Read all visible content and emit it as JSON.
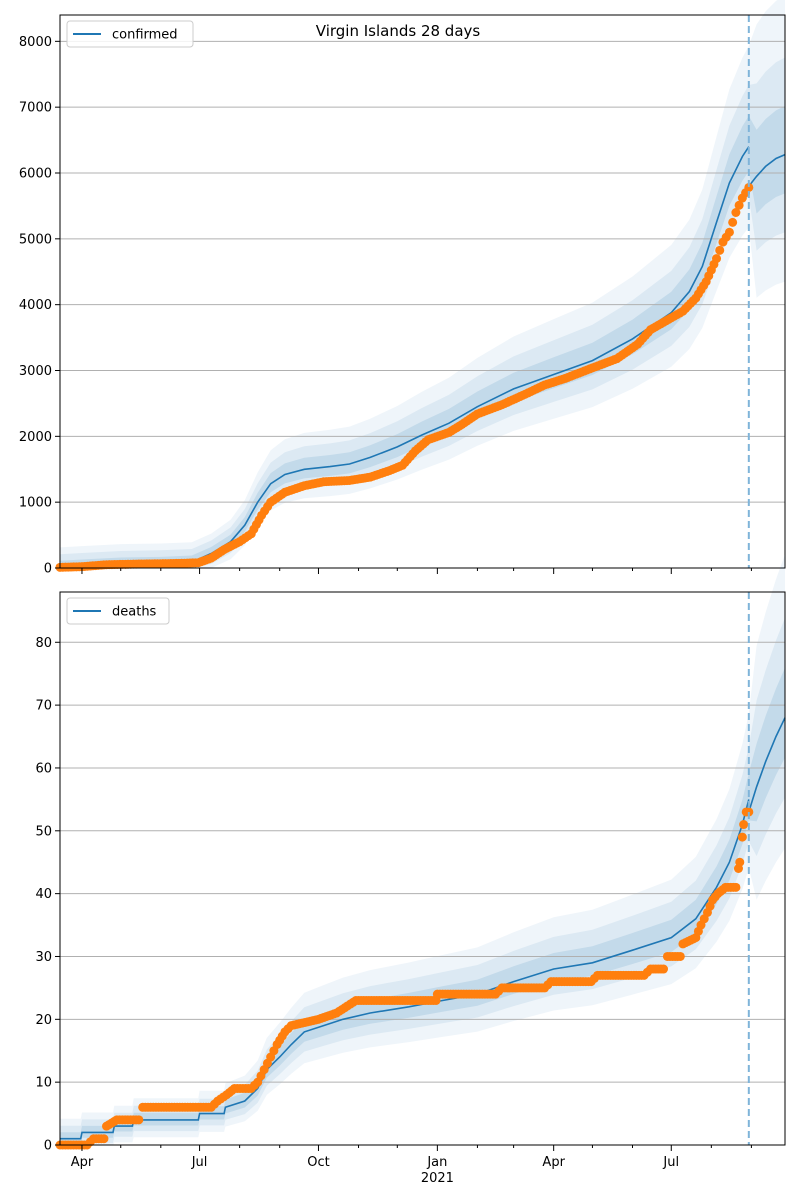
{
  "figure": {
    "title": "Virgin Islands 28 days",
    "xlabel_year": "2021"
  },
  "chart_data": [
    {
      "type": "line",
      "title": "Virgin Islands 28 days",
      "legend": [
        "confirmed"
      ],
      "legend_position": "top-left",
      "ylim": [
        0,
        8400
      ],
      "yticks": [
        0,
        1000,
        2000,
        3000,
        4000,
        5000,
        6000,
        7000,
        8000
      ],
      "xticks": [
        "Apr",
        "Jul",
        "Oct",
        "Jan",
        "Apr",
        "Jul"
      ],
      "xlabel": "2021",
      "grid": "horizontal",
      "x_start": "2020-03-15",
      "x_end": "2021-09-27",
      "forecast_start": "2021-08-30",
      "series": [
        {
          "name": "confirmed",
          "role": "model",
          "color": "#1f77b4",
          "points": [
            [
              "2020-03-15",
              10
            ],
            [
              "2020-04-01",
              30
            ],
            [
              "2020-05-01",
              60
            ],
            [
              "2020-06-01",
              70
            ],
            [
              "2020-06-25",
              90
            ],
            [
              "2020-07-10",
              220
            ],
            [
              "2020-07-25",
              400
            ],
            [
              "2020-08-05",
              650
            ],
            [
              "2020-08-15",
              1000
            ],
            [
              "2020-08-25",
              1280
            ],
            [
              "2020-09-05",
              1420
            ],
            [
              "2020-09-20",
              1500
            ],
            [
              "2020-10-10",
              1540
            ],
            [
              "2020-10-25",
              1580
            ],
            [
              "2020-11-10",
              1680
            ],
            [
              "2020-12-01",
              1840
            ],
            [
              "2020-12-20",
              2020
            ],
            [
              "2021-01-10",
              2200
            ],
            [
              "2021-02-01",
              2450
            ],
            [
              "2021-03-01",
              2720
            ],
            [
              "2021-04-01",
              2940
            ],
            [
              "2021-05-01",
              3150
            ],
            [
              "2021-06-01",
              3480
            ],
            [
              "2021-07-01",
              3880
            ],
            [
              "2021-07-15",
              4200
            ],
            [
              "2021-07-25",
              4580
            ],
            [
              "2021-08-05",
              5250
            ],
            [
              "2021-08-15",
              5850
            ],
            [
              "2021-08-25",
              6250
            ],
            [
              "2021-08-30",
              6400
            ]
          ]
        },
        {
          "name": "forecast",
          "role": "forecast",
          "color": "#1f77b4",
          "points": [
            [
              "2021-08-30",
              5800
            ],
            [
              "2021-09-05",
              5950
            ],
            [
              "2021-09-12",
              6100
            ],
            [
              "2021-09-20",
              6220
            ],
            [
              "2021-09-27",
              6280
            ]
          ]
        },
        {
          "name": "observed",
          "role": "observed",
          "color": "#ff7f0e",
          "points": [
            [
              "2020-03-15",
              10
            ],
            [
              "2020-04-01",
              20
            ],
            [
              "2020-04-20",
              50
            ],
            [
              "2020-05-15",
              60
            ],
            [
              "2020-06-15",
              70
            ],
            [
              "2020-06-30",
              80
            ],
            [
              "2020-07-10",
              150
            ],
            [
              "2020-07-20",
              280
            ],
            [
              "2020-08-01",
              400
            ],
            [
              "2020-08-10",
              520
            ],
            [
              "2020-08-18",
              800
            ],
            [
              "2020-08-25",
              1000
            ],
            [
              "2020-09-05",
              1150
            ],
            [
              "2020-09-20",
              1250
            ],
            [
              "2020-10-05",
              1310
            ],
            [
              "2020-10-25",
              1330
            ],
            [
              "2020-11-10",
              1380
            ],
            [
              "2020-11-25",
              1480
            ],
            [
              "2020-12-05",
              1560
            ],
            [
              "2020-12-15",
              1780
            ],
            [
              "2020-12-25",
              1950
            ],
            [
              "2021-01-10",
              2060
            ],
            [
              "2021-01-20",
              2180
            ],
            [
              "2021-02-01",
              2340
            ],
            [
              "2021-02-20",
              2480
            ],
            [
              "2021-03-10",
              2640
            ],
            [
              "2021-03-25",
              2780
            ],
            [
              "2021-04-10",
              2880
            ],
            [
              "2021-05-01",
              3040
            ],
            [
              "2021-05-20",
              3180
            ],
            [
              "2021-06-05",
              3400
            ],
            [
              "2021-06-15",
              3620
            ],
            [
              "2021-07-01",
              3800
            ],
            [
              "2021-07-10",
              3900
            ],
            [
              "2021-07-20",
              4100
            ],
            [
              "2021-07-28",
              4350
            ],
            [
              "2021-08-05",
              4700
            ],
            [
              "2021-08-10",
              4950
            ],
            [
              "2021-08-15",
              5100
            ],
            [
              "2021-08-20",
              5400
            ],
            [
              "2021-08-25",
              5620
            ],
            [
              "2021-08-30",
              5780
            ]
          ]
        }
      ]
    },
    {
      "type": "line",
      "legend": [
        "deaths"
      ],
      "legend_position": "top-left",
      "ylim": [
        0,
        88
      ],
      "yticks": [
        0,
        10,
        20,
        30,
        40,
        50,
        60,
        70,
        80
      ],
      "xticks": [
        "Apr",
        "Jul",
        "Oct",
        "Jan",
        "Apr",
        "Jul"
      ],
      "xlabel": "2021",
      "grid": "horizontal",
      "x_start": "2020-03-15",
      "x_end": "2021-09-27",
      "forecast_start": "2021-08-30",
      "series": [
        {
          "name": "deaths",
          "role": "model",
          "color": "#1f77b4",
          "points": [
            [
              "2020-03-15",
              1
            ],
            [
              "2020-03-31",
              1
            ],
            [
              "2020-04-01",
              2
            ],
            [
              "2020-04-25",
              2
            ],
            [
              "2020-04-26",
              3
            ],
            [
              "2020-05-10",
              3
            ],
            [
              "2020-05-11",
              4
            ],
            [
              "2020-06-30",
              4
            ],
            [
              "2020-07-01",
              5
            ],
            [
              "2020-07-20",
              5
            ],
            [
              "2020-07-21",
              6
            ],
            [
              "2020-08-05",
              7
            ],
            [
              "2020-08-15",
              9
            ],
            [
              "2020-08-22",
              12
            ],
            [
              "2020-09-01",
              14
            ],
            [
              "2020-09-10",
              16
            ],
            [
              "2020-09-20",
              18
            ],
            [
              "2020-10-05",
              19
            ],
            [
              "2020-10-20",
              20
            ],
            [
              "2020-11-10",
              21
            ],
            [
              "2020-12-10",
              22
            ],
            [
              "2021-01-05",
              23
            ],
            [
              "2021-02-01",
              24
            ],
            [
              "2021-03-01",
              26
            ],
            [
              "2021-04-01",
              28
            ],
            [
              "2021-05-01",
              29
            ],
            [
              "2021-06-01",
              31
            ],
            [
              "2021-07-01",
              33
            ],
            [
              "2021-07-20",
              36
            ],
            [
              "2021-08-05",
              41
            ],
            [
              "2021-08-15",
              45
            ],
            [
              "2021-08-25",
              51
            ],
            [
              "2021-08-30",
              55
            ]
          ]
        },
        {
          "name": "forecast",
          "role": "forecast",
          "color": "#1f77b4",
          "points": [
            [
              "2021-08-30",
              53
            ],
            [
              "2021-09-05",
              57
            ],
            [
              "2021-09-12",
              61
            ],
            [
              "2021-09-20",
              65
            ],
            [
              "2021-09-27",
              68
            ]
          ]
        },
        {
          "name": "observed",
          "role": "observed",
          "color": "#ff7f0e",
          "points": [
            [
              "2020-03-15",
              0
            ],
            [
              "2020-04-05",
              0
            ],
            [
              "2020-04-10",
              1
            ],
            [
              "2020-04-18",
              1
            ],
            [
              "2020-04-20",
              3
            ],
            [
              "2020-04-28",
              4
            ],
            [
              "2020-05-15",
              4
            ],
            [
              "2020-05-18",
              6
            ],
            [
              "2020-06-30",
              6
            ],
            [
              "2020-07-10",
              6
            ],
            [
              "2020-07-15",
              7
            ],
            [
              "2020-07-22",
              8
            ],
            [
              "2020-07-28",
              9
            ],
            [
              "2020-08-10",
              9
            ],
            [
              "2020-08-15",
              10
            ],
            [
              "2020-08-20",
              12
            ],
            [
              "2020-08-25",
              14
            ],
            [
              "2020-08-30",
              16
            ],
            [
              "2020-09-05",
              18
            ],
            [
              "2020-09-10",
              19
            ],
            [
              "2020-10-01",
              20
            ],
            [
              "2020-10-15",
              21
            ],
            [
              "2020-10-30",
              23
            ],
            [
              "2020-12-31",
              23
            ],
            [
              "2021-01-01",
              24
            ],
            [
              "2021-02-15",
              24
            ],
            [
              "2021-02-20",
              25
            ],
            [
              "2021-03-25",
              25
            ],
            [
              "2021-03-30",
              26
            ],
            [
              "2021-04-30",
              26
            ],
            [
              "2021-05-05",
              27
            ],
            [
              "2021-06-10",
              27
            ],
            [
              "2021-06-15",
              28
            ],
            [
              "2021-06-25",
              28
            ],
            [
              "2021-06-28",
              30
            ],
            [
              "2021-07-08",
              30
            ],
            [
              "2021-07-10",
              32
            ],
            [
              "2021-07-20",
              33
            ],
            [
              "2021-07-24",
              35
            ],
            [
              "2021-07-29",
              37
            ],
            [
              "2021-08-02",
              39
            ],
            [
              "2021-08-06",
              40
            ],
            [
              "2021-08-12",
              41
            ],
            [
              "2021-08-20",
              41
            ],
            [
              "2021-08-22",
              44
            ],
            [
              "2021-08-23",
              45
            ],
            [
              "2021-08-25",
              49
            ],
            [
              "2021-08-26",
              51
            ],
            [
              "2021-08-28",
              53
            ],
            [
              "2021-08-30",
              53
            ]
          ]
        }
      ]
    }
  ]
}
